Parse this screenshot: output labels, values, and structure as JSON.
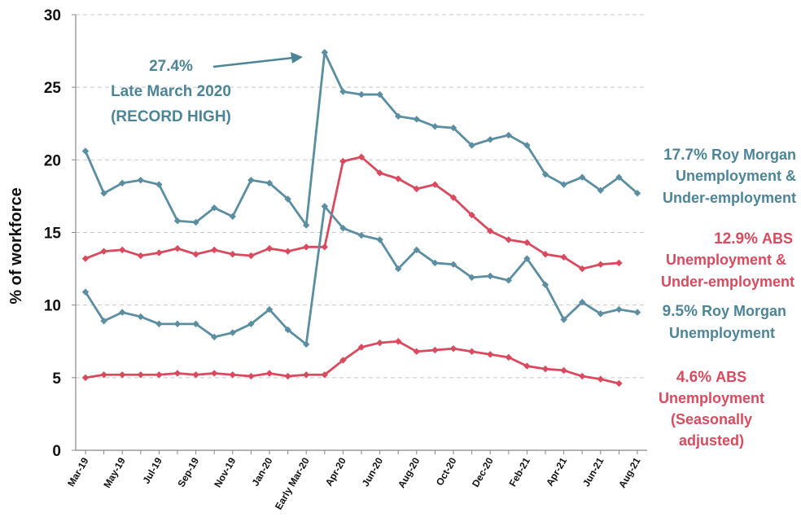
{
  "chart_data": {
    "type": "line",
    "ylabel": "% of workforce",
    "ylim": [
      0,
      30
    ],
    "yticks": [
      "0",
      "5",
      "10",
      "15",
      "20",
      "25",
      "30"
    ],
    "grid": "horizontal dashed",
    "x": [
      "Mar-19",
      "Apr-19",
      "May-19",
      "Jun-19",
      "Jul-19",
      "Aug-19",
      "Sep-19",
      "Oct-19",
      "Nov-19",
      "Dec-19",
      "Jan-20",
      "Feb-20",
      "Early Mar-20",
      "Late Mar-20",
      "Apr-20",
      "May-20",
      "Jun-20",
      "Jul-20",
      "Aug-20",
      "Sep-20",
      "Oct-20",
      "Nov-20",
      "Dec-20",
      "Jan-21",
      "Feb-21",
      "Mar-21",
      "Apr-21",
      "May-21",
      "Jun-21",
      "Jul-21",
      "Aug-21"
    ],
    "xtick_labels": [
      "Mar-19",
      "May-19",
      "Jul-19",
      "Sep-19",
      "Nov-19",
      "Jan-20",
      "Early Mar-20",
      "Apr-20",
      "Jun-20",
      "Aug-20",
      "Oct-20",
      "Dec-20",
      "Feb-21",
      "Apr-21",
      "Jun-21",
      "Aug-21"
    ],
    "series": [
      {
        "color": "#5a8ea0",
        "values": [
          20.6,
          17.7,
          18.4,
          18.6,
          18.3,
          15.8,
          15.7,
          16.7,
          16.1,
          18.6,
          18.4,
          17.3,
          15.5,
          27.4,
          24.7,
          24.5,
          24.5,
          23.0,
          22.8,
          22.3,
          22.2,
          21.0,
          21.4,
          21.7,
          21.0,
          19.0,
          18.3,
          18.8,
          17.9,
          18.8,
          17.7
        ]
      },
      {
        "color": "#d94a5f",
        "values": [
          13.2,
          13.7,
          13.8,
          13.4,
          13.6,
          13.9,
          13.5,
          13.8,
          13.5,
          13.4,
          13.9,
          13.7,
          14.0,
          14.0,
          19.9,
          20.2,
          19.1,
          18.7,
          18.0,
          18.3,
          17.4,
          16.2,
          15.1,
          14.5,
          14.3,
          13.5,
          13.3,
          12.5,
          12.8,
          12.9,
          null
        ]
      },
      {
        "color": "#5a8ea0",
        "values": [
          10.9,
          8.9,
          9.5,
          9.2,
          8.7,
          8.7,
          8.7,
          7.8,
          8.1,
          8.7,
          9.7,
          8.3,
          7.3,
          16.8,
          15.3,
          14.8,
          14.5,
          12.5,
          13.8,
          12.9,
          12.8,
          11.9,
          12.0,
          11.7,
          13.2,
          11.4,
          9.0,
          10.2,
          9.4,
          9.7,
          9.5
        ]
      },
      {
        "color": "#d94a5f",
        "values": [
          5.0,
          5.2,
          5.2,
          5.2,
          5.2,
          5.3,
          5.2,
          5.3,
          5.2,
          5.1,
          5.3,
          5.1,
          5.2,
          5.2,
          6.2,
          7.1,
          7.4,
          7.5,
          6.8,
          6.9,
          7.0,
          6.8,
          6.6,
          6.4,
          5.8,
          5.6,
          5.5,
          5.1,
          4.9,
          4.6,
          null
        ]
      }
    ],
    "annotations": {
      "record": {
        "value": "27.4%",
        "line2": "Late March 2020",
        "line3": "(RECORD HIGH)"
      },
      "rm_under": {
        "value": "17.7%",
        "line1": "Roy Morgan",
        "line2": "Unemployment &",
        "line3": "Under-employment"
      },
      "abs_under": {
        "value": "12.9%",
        "line1": "ABS",
        "line2": "Unemployment &",
        "line3": "Under-employment"
      },
      "rm_unemp": {
        "value": "9.5%",
        "line1": "Roy Morgan",
        "line2": "Unemployment"
      },
      "abs_unemp": {
        "value": "4.6%",
        "line1": "ABS",
        "line2": "Unemployment",
        "line3": "(Seasonally",
        "line4": "adjusted)"
      }
    }
  }
}
